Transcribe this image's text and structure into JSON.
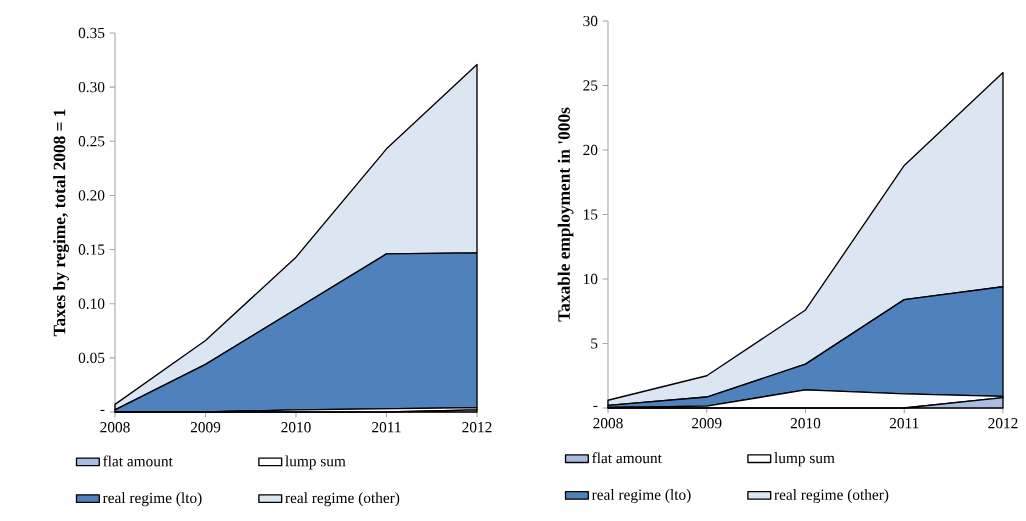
{
  "chart_data": [
    {
      "type": "area",
      "stacked": true,
      "ylabel": "Taxes by regime, total 2008 = 1",
      "categories": [
        "2008",
        "2009",
        "2010",
        "2011",
        "2012"
      ],
      "series": [
        {
          "name": "flat amount",
          "color": "#a9bde0",
          "values": [
            0,
            0,
            0,
            0,
            0.002
          ]
        },
        {
          "name": "lump sum",
          "color": "#ffffff",
          "values": [
            0,
            0,
            0.002,
            0.003,
            0.002
          ]
        },
        {
          "name": "real regime (lto)",
          "color": "#4f81bd",
          "values": [
            0.002,
            0.044,
            0.093,
            0.143,
            0.143
          ]
        },
        {
          "name": "real regime (other)",
          "color": "#dce6f2",
          "values": [
            0.005,
            0.022,
            0.048,
            0.097,
            0.174
          ]
        }
      ],
      "ylim": [
        0,
        0.35
      ],
      "yticks": [
        {
          "value": 0,
          "label": "-"
        },
        0.05,
        {
          "value": 0.1,
          "label": "0.10"
        },
        0.15,
        {
          "value": 0.2,
          "label": "0.20"
        },
        0.25,
        {
          "value": 0.3,
          "label": "0.30"
        },
        0.35
      ],
      "legend": "bottom",
      "grid": false
    },
    {
      "type": "area",
      "stacked": true,
      "ylabel": "Taxable employment in '000s",
      "categories": [
        "2008",
        "2009",
        "2010",
        "2011",
        "2012"
      ],
      "series": [
        {
          "name": "flat amount",
          "color": "#a9bde0",
          "values": [
            0,
            0,
            0,
            0,
            0.8
          ]
        },
        {
          "name": "lump sum",
          "color": "#ffffff",
          "values": [
            0.05,
            0.15,
            1.4,
            1.1,
            0.1
          ]
        },
        {
          "name": "real regime (lto)",
          "color": "#4f81bd",
          "values": [
            0.15,
            0.7,
            2.0,
            7.3,
            8.5
          ]
        },
        {
          "name": "real regime (other)",
          "color": "#dce6f2",
          "values": [
            0.4,
            1.65,
            4.2,
            10.4,
            16.6
          ]
        }
      ],
      "ylim": [
        0,
        30
      ],
      "yticks": [
        {
          "value": 0,
          "label": "-"
        },
        5,
        10,
        15,
        20,
        25,
        30
      ],
      "legend": "bottom",
      "grid": false
    }
  ]
}
